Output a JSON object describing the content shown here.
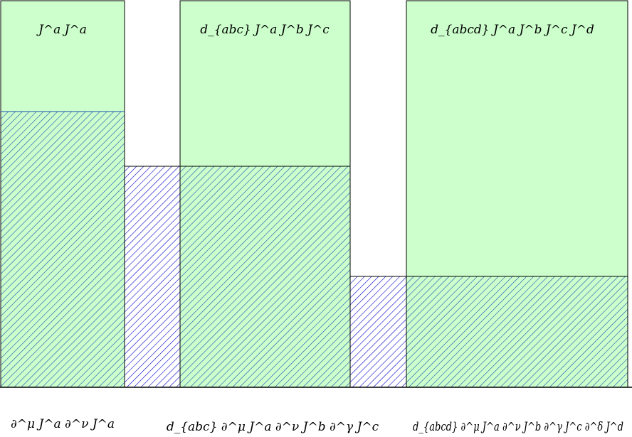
{
  "top_labels": [
    {
      "text": "J^a J^a"
    },
    {
      "text": "d_{abc} J^a J^b J^c"
    },
    {
      "text": "d_{abcd} J^a J^b J^c J^d"
    }
  ],
  "bottom_labels": [
    {
      "text": "∂^μ J^a ∂^ν J^a"
    },
    {
      "text": "d_{abc} ∂^μ J^a ∂^ν J^b ∂^γ J^c"
    },
    {
      "text": "d_{abcd} ∂^μ J^a ∂^ν J^b ∂^γ J^c ∂^δ J^d"
    }
  ],
  "colors": {
    "green_fill": "#ccffcc",
    "hatch_blue": "#0000cc",
    "hatch_teal": "#008b8b",
    "border": "#000000"
  }
}
